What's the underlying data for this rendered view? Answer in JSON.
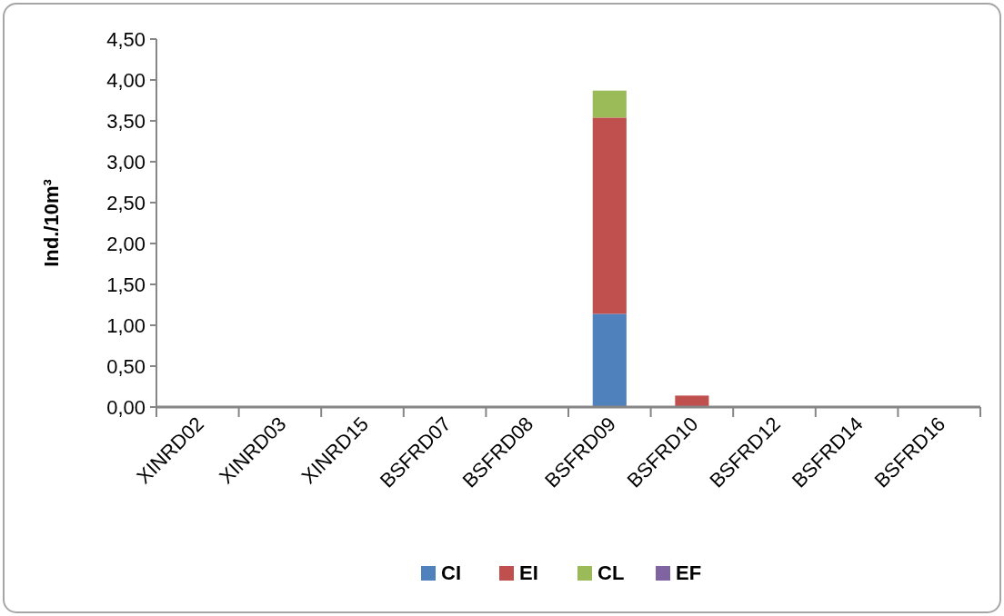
{
  "chart_data": {
    "type": "bar",
    "stacked": true,
    "ylabel": "Ind./10m³",
    "categories": [
      "XINRD02",
      "XINRD03",
      "XINRD15",
      "BSFRD07",
      "BSFRD08",
      "BSFRD09",
      "BSFRD10",
      "BSFRD12",
      "BSFRD14",
      "BSFRD16"
    ],
    "series": [
      {
        "name": "CI",
        "color": "#4f81bd",
        "values": [
          0,
          0,
          0,
          0,
          0,
          1.14,
          0,
          0,
          0,
          0
        ]
      },
      {
        "name": "EI",
        "color": "#c0504d",
        "values": [
          0,
          0,
          0,
          0,
          0,
          2.4,
          0.14,
          0,
          0,
          0
        ]
      },
      {
        "name": "CL",
        "color": "#9bbb59",
        "values": [
          0,
          0,
          0,
          0,
          0,
          0.33,
          0,
          0,
          0,
          0
        ]
      },
      {
        "name": "EF",
        "color": "#8064a2",
        "values": [
          0,
          0,
          0,
          0,
          0,
          0,
          0,
          0,
          0,
          0
        ]
      }
    ],
    "ylim": [
      0,
      4.5
    ],
    "yticks": [
      {
        "value": 0,
        "label": "0,00"
      },
      {
        "value": 0.5,
        "label": "0,50"
      },
      {
        "value": 1,
        "label": "1,00"
      },
      {
        "value": 1.5,
        "label": "1,50"
      },
      {
        "value": 2,
        "label": "2,00"
      },
      {
        "value": 2.5,
        "label": "2,50"
      },
      {
        "value": 3,
        "label": "3,00"
      },
      {
        "value": 3.5,
        "label": "3,50"
      },
      {
        "value": 4,
        "label": "4,00"
      },
      {
        "value": 4.5,
        "label": "4,50"
      }
    ],
    "grid": false,
    "legend": "bottom"
  }
}
